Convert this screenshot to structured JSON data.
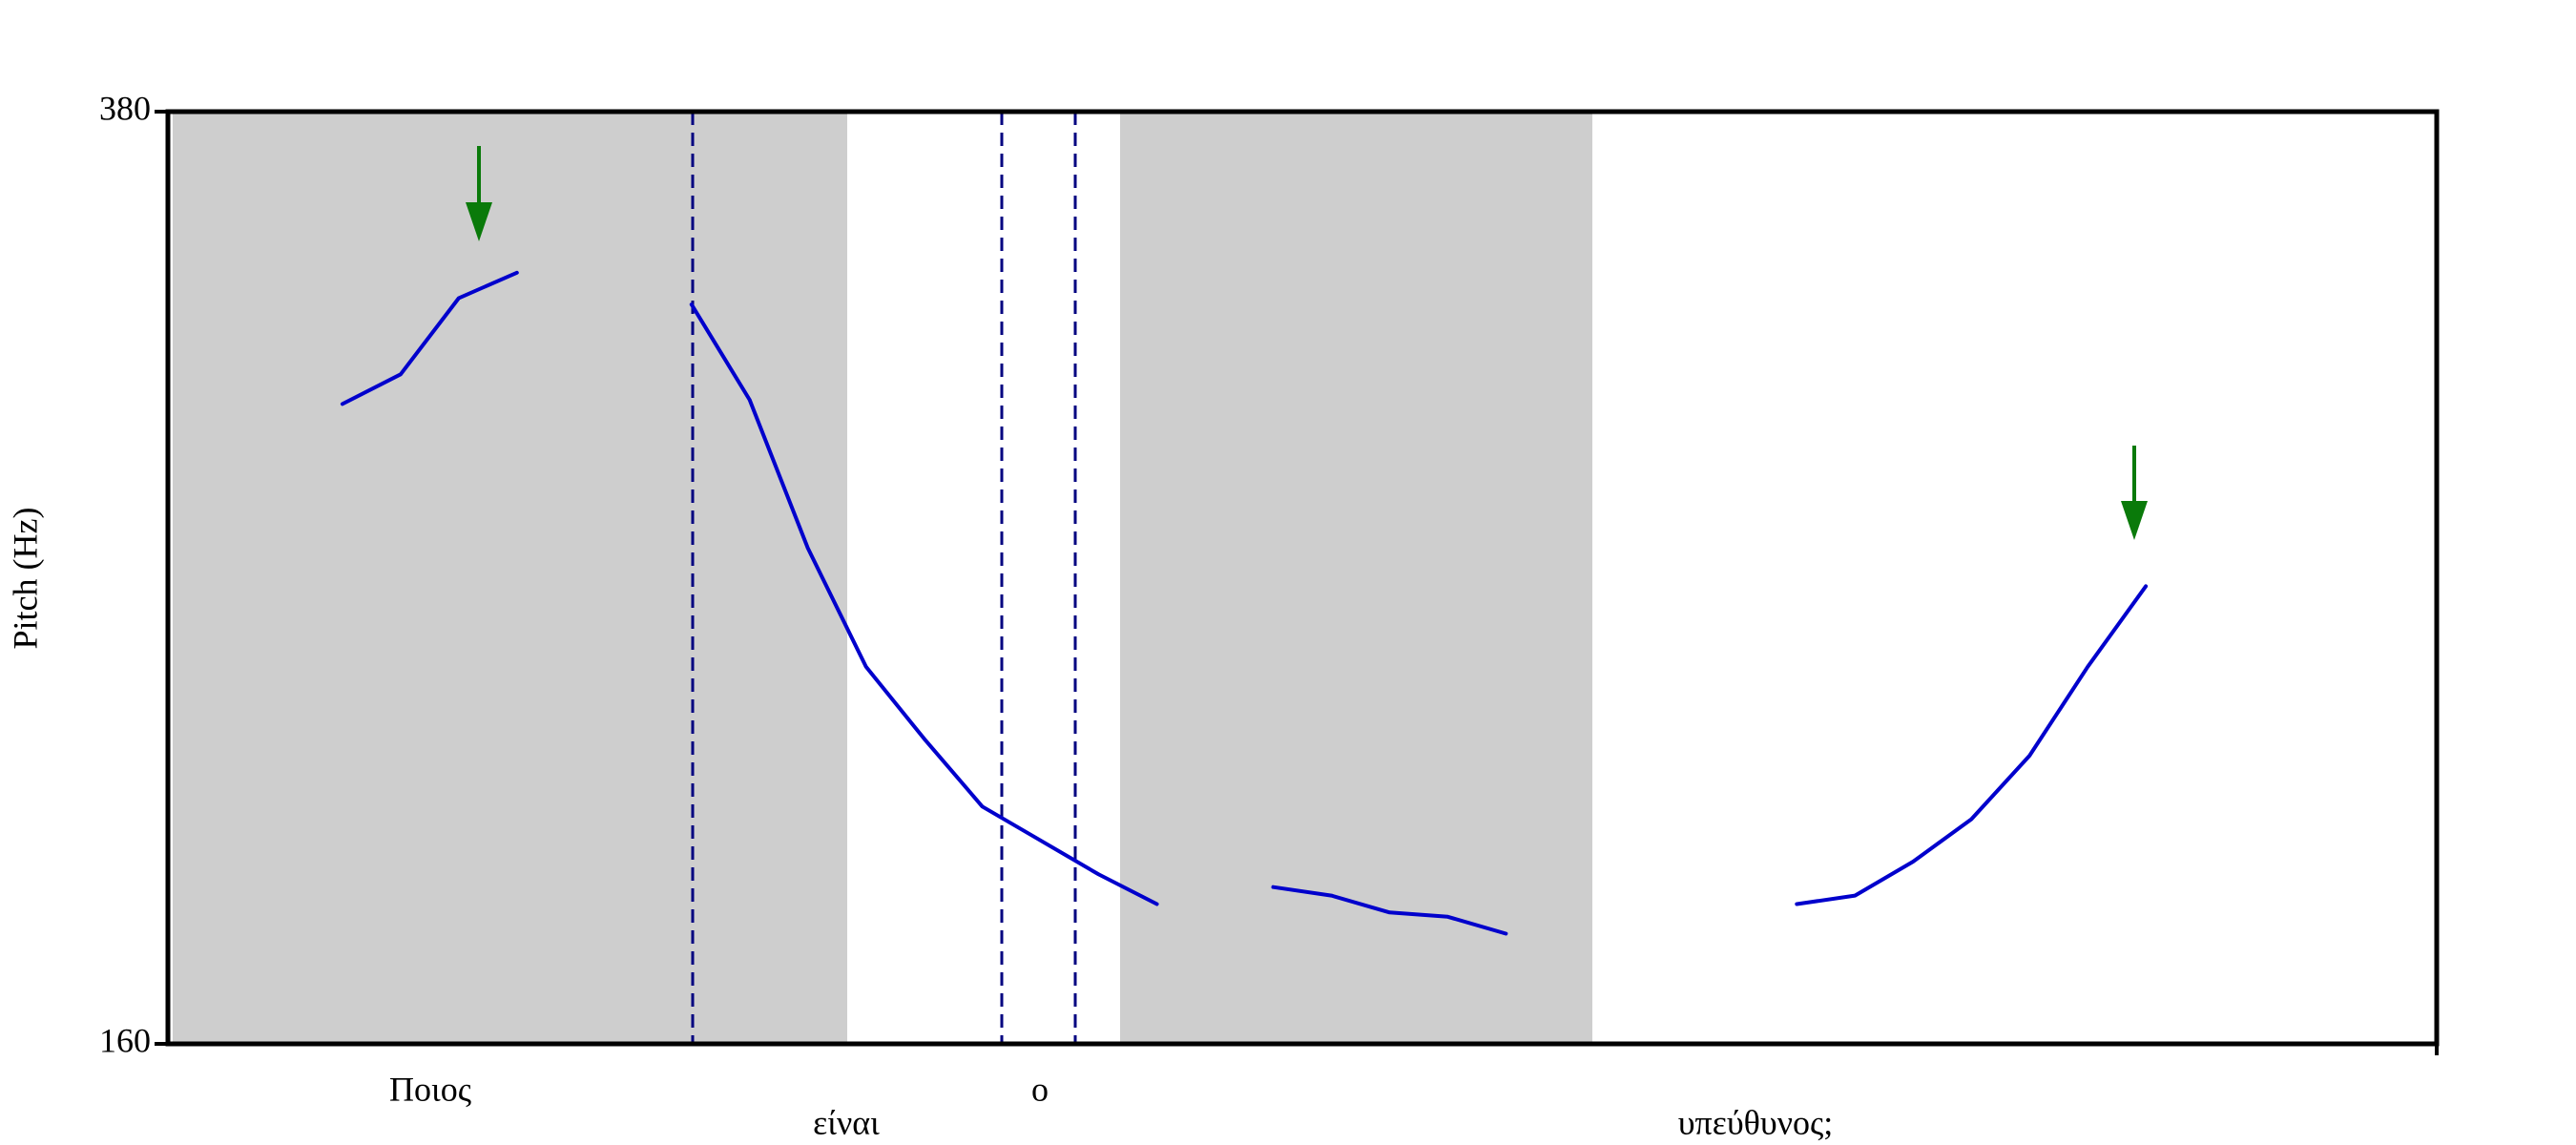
{
  "chart_data": {
    "type": "line",
    "ylabel": "Pitch (Hz)",
    "ylim": [
      160,
      380
    ],
    "yticks": [
      160,
      380
    ],
    "series": [
      {
        "color": "#0000cc",
        "values": [
          null,
          null,
          null,
          311,
          318,
          336,
          342,
          null,
          null,
          334.5,
          312,
          277,
          249,
          232,
          216,
          208,
          200,
          193,
          null,
          197,
          195,
          191,
          190,
          186,
          null,
          null,
          null,
          null,
          193,
          195,
          203,
          213,
          228,
          249,
          268,
          null,
          null,
          null,
          null,
          null
        ]
      }
    ],
    "annotations": [
      "Ποιος",
      "είναι",
      "ο",
      "υπεύθυνος;"
    ]
  }
}
